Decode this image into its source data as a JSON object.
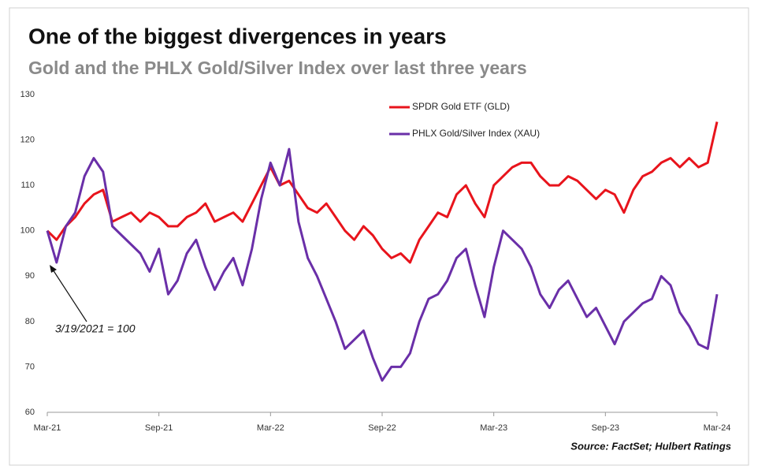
{
  "chart_data": {
    "type": "line",
    "title": "One of the biggest divergences in years",
    "subtitle": "Gold and the PHLX Gold/Silver Index over last three years",
    "annotation": "3/19/2021 = 100",
    "source": "Source: FactSet; Hulbert Ratings",
    "categories": [
      "Mar-21",
      null,
      null,
      null,
      null,
      null,
      null,
      null,
      null,
      null,
      null,
      null,
      "Sep-21",
      null,
      null,
      null,
      null,
      null,
      null,
      null,
      null,
      null,
      null,
      null,
      "Mar-22",
      null,
      null,
      null,
      null,
      null,
      null,
      null,
      null,
      null,
      null,
      null,
      "Sep-22",
      null,
      null,
      null,
      null,
      null,
      null,
      null,
      null,
      null,
      null,
      null,
      "Mar-23",
      null,
      null,
      null,
      null,
      null,
      null,
      null,
      null,
      null,
      null,
      null,
      "Sep-23",
      null,
      null,
      null,
      null,
      null,
      null,
      null,
      null,
      null,
      null,
      null,
      "Mar-24"
    ],
    "series": [
      {
        "name": "SPDR Gold ETF (GLD)",
        "color": "#e8141c",
        "values": [
          100,
          98,
          101,
          103,
          106,
          108,
          109,
          102,
          103,
          104,
          102,
          104,
          103,
          101,
          101,
          103,
          104,
          106,
          102,
          103,
          104,
          102,
          106,
          110,
          114,
          110,
          111,
          108,
          105,
          104,
          106,
          103,
          100,
          98,
          101,
          99,
          96,
          94,
          95,
          93,
          98,
          101,
          104,
          103,
          108,
          110,
          106,
          103,
          110,
          112,
          114,
          115,
          115,
          112,
          110,
          110,
          112,
          111,
          109,
          107,
          109,
          108,
          104,
          109,
          112,
          113,
          115,
          116,
          114,
          116,
          114,
          115,
          124
        ]
      },
      {
        "name": "PHLX Gold/Silver Index (XAU)",
        "color": "#6a2fa8",
        "values": [
          100,
          93,
          101,
          104,
          112,
          116,
          113,
          101,
          99,
          97,
          95,
          91,
          96,
          86,
          89,
          95,
          98,
          92,
          87,
          91,
          94,
          88,
          96,
          107,
          115,
          110,
          118,
          102,
          94,
          90,
          85,
          80,
          74,
          76,
          78,
          72,
          67,
          70,
          70,
          73,
          80,
          85,
          86,
          89,
          94,
          96,
          88,
          81,
          92,
          100,
          98,
          96,
          92,
          86,
          83,
          87,
          89,
          85,
          81,
          83,
          79,
          75,
          80,
          82,
          84,
          85,
          90,
          88,
          82,
          79,
          75,
          74,
          86
        ]
      }
    ],
    "ylim": [
      60,
      130
    ],
    "yticks": [
      60,
      70,
      80,
      90,
      100,
      110,
      120,
      130
    ]
  }
}
